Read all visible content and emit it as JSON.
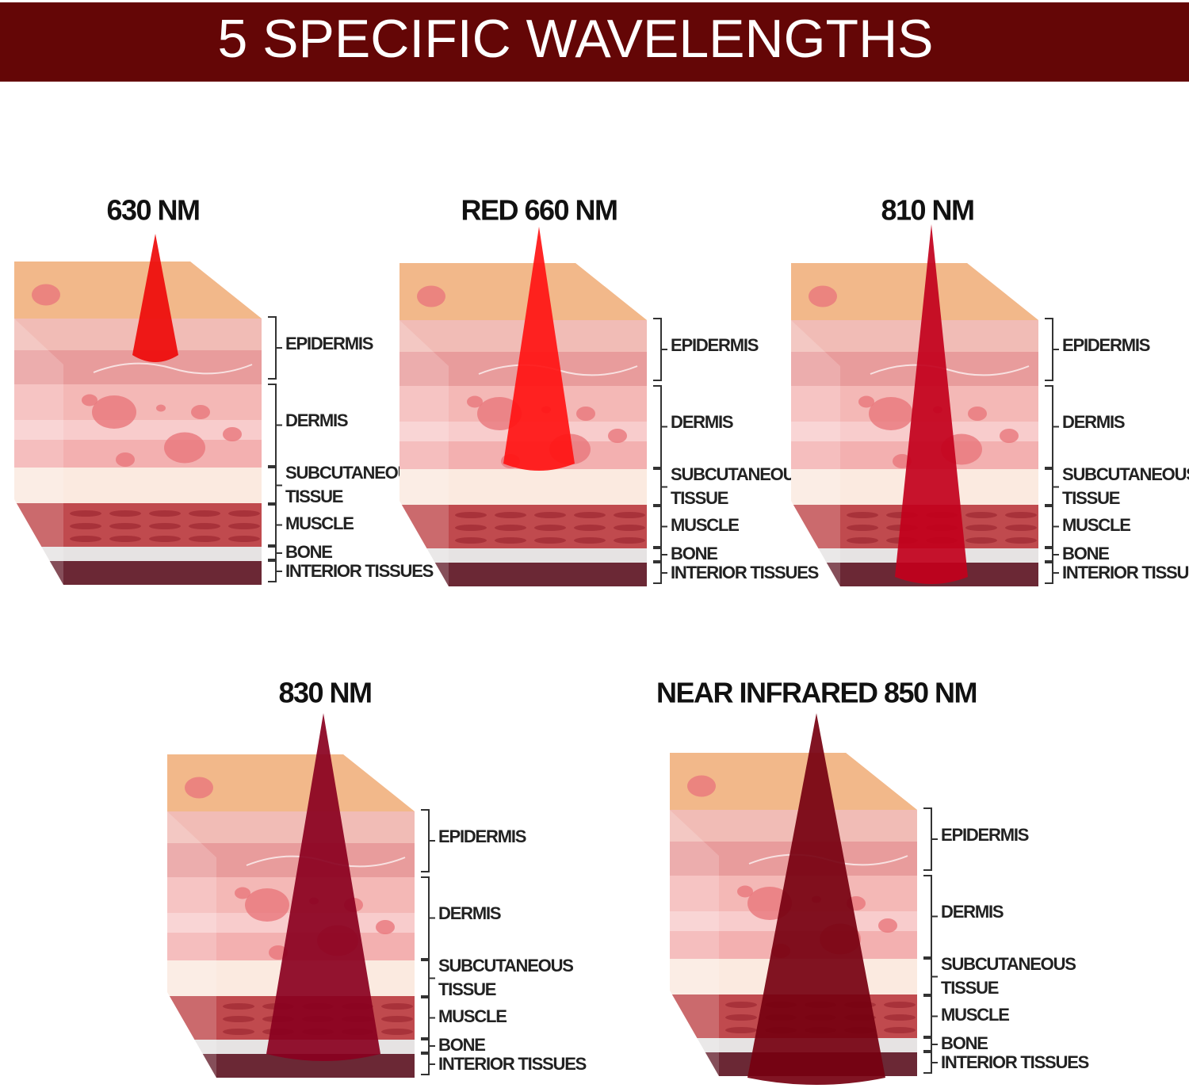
{
  "header": {
    "title": "5 SPECIFIC WAVELENGTHS"
  },
  "panels": [
    {
      "title": "630 NM",
      "labels": [
        "EPIDERMIS",
        "DERMIS",
        "SUBCUTANEOUS",
        "TISSUE",
        "MUSCLE",
        "BONE",
        "INTERIOR TISSUES"
      ]
    },
    {
      "title": "RED 660 NM",
      "labels": [
        "EPIDERMIS",
        "DERMIS",
        "SUBCUTANEOUS",
        "TISSUE",
        "MUSCLE",
        "BONE",
        "INTERIOR TISSUES"
      ]
    },
    {
      "title": "810 NM",
      "labels": [
        "EPIDERMIS",
        "DERMIS",
        "SUBCUTANEOUS",
        "TISSUE",
        "MUSCLE",
        "BONE",
        "INTERIOR TISSUES"
      ]
    },
    {
      "title": "830 NM",
      "labels": [
        "EPIDERMIS",
        "DERMIS",
        "SUBCUTANEOUS",
        "TISSUE",
        "MUSCLE",
        "BONE",
        "INTERIOR TISSUES"
      ]
    },
    {
      "title": "NEAR INFRARED 850 NM",
      "labels": [
        "EPIDERMIS",
        "DERMIS",
        "SUBCUTANEOUS",
        "TISSUE",
        "MUSCLE",
        "BONE",
        "INTERIOR TISSUES"
      ]
    }
  ]
}
